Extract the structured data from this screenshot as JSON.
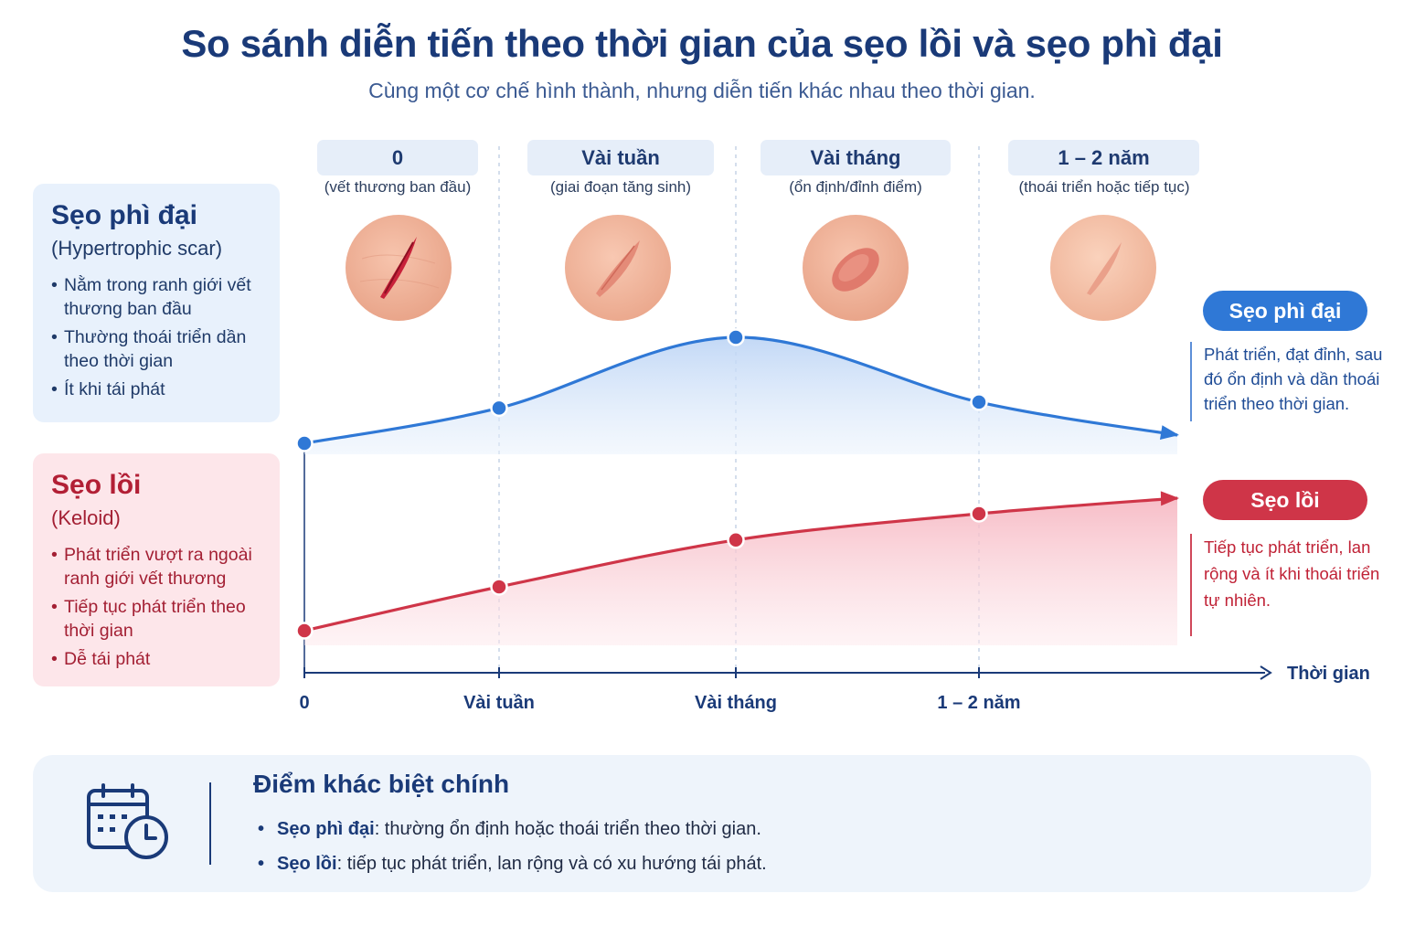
{
  "title": "So sánh diễn tiến theo thời gian của sẹo lồi và sẹo phì đại",
  "subtitle": "Cùng một cơ chế hình thành, nhưng diễn tiến khác nhau theo thời gian.",
  "stages": [
    {
      "label": "0",
      "desc": "(vết thương ban đầu)"
    },
    {
      "label": "Vài tuần",
      "desc": "(giai đoạn tăng sinh)"
    },
    {
      "label": "Vài tháng",
      "desc": "(ổn định/đỉnh điểm)"
    },
    {
      "label": "1 – 2 năm",
      "desc": "(thoái triển hoặc tiếp tục)"
    }
  ],
  "hypertrophic": {
    "name": "Sẹo phì đại",
    "english": "(Hypertrophic scar)",
    "bullets": [
      "Nằm trong ranh giới vết thương ban đầu",
      "Thường thoái triển dần theo thời gian",
      "Ít khi tái phát"
    ],
    "tag": "Sẹo phì đại",
    "note": "Phát triển, đạt đỉnh, sau đó ổn định và dần thoái triển theo thời gian.",
    "color": "#2f78d6"
  },
  "keloid": {
    "name": "Sẹo lồi",
    "english": "(Keloid)",
    "bullets": [
      "Phát triển vượt ra ngoài ranh giới vết thương",
      "Tiếp tục phát triển theo thời gian",
      "Dễ tái phát"
    ],
    "tag": "Sẹo lồi",
    "note": "Tiếp tục phát triển, lan rộng và ít khi thoái triển tự nhiên.",
    "color": "#cf3548"
  },
  "chart_data": {
    "type": "line",
    "xlabel": "Thời gian",
    "ylabel": "",
    "categories": [
      "0",
      "Vài tuần",
      "Vài tháng",
      "1 – 2 năm"
    ],
    "x_axis_labels": [
      "0",
      "Vài tuần",
      "Vài tháng",
      "1 – 2 năm"
    ],
    "grid": false,
    "series": [
      {
        "name": "Sẹo phì đại",
        "values": [
          0.1,
          0.4,
          1.0,
          0.45
        ],
        "trend_after_last": "decreasing",
        "color": "#2f78d6"
      },
      {
        "name": "Sẹo lồi",
        "values": [
          0.1,
          0.4,
          0.72,
          0.9
        ],
        "trend_after_last": "increasing",
        "color": "#cf3548"
      }
    ]
  },
  "summary": {
    "heading": "Điểm khác biệt chính",
    "items": [
      {
        "term": "Sẹo phì đại",
        "text": ": thường ổn định hoặc thoái triển theo thời gian."
      },
      {
        "term": "Sẹo lồi",
        "text": ": tiếp tục phát triển, lan rộng và có xu hướng tái phát."
      }
    ],
    "icon": "calendar-clock-icon"
  }
}
